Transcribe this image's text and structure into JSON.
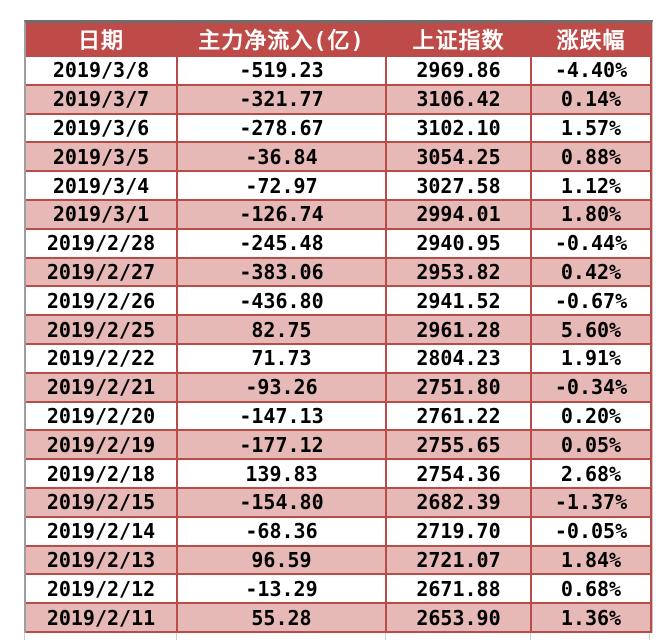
{
  "colors": {
    "header_bg": "#be4b48",
    "header_text": "#ffffff",
    "row_bg": "#ffffff",
    "row_alt_bg": "#e6b9b7",
    "grid_line": "#b94b48",
    "outer_border_top": "#6e6e6e",
    "outer_border_left": "#9e9e9e",
    "body_text": "#000000"
  },
  "chart_data": {
    "type": "table",
    "title": "",
    "columns": [
      "日期",
      "主力净流入(亿)",
      "上证指数",
      "涨跌幅"
    ],
    "rows": [
      [
        "2019/3/8",
        "-519.23",
        "2969.86",
        "-4.40%"
      ],
      [
        "2019/3/7",
        "-321.77",
        "3106.42",
        "0.14%"
      ],
      [
        "2019/3/6",
        "-278.67",
        "3102.10",
        "1.57%"
      ],
      [
        "2019/3/5",
        "-36.84",
        "3054.25",
        "0.88%"
      ],
      [
        "2019/3/4",
        "-72.97",
        "3027.58",
        "1.12%"
      ],
      [
        "2019/3/1",
        "-126.74",
        "2994.01",
        "1.80%"
      ],
      [
        "2019/2/28",
        "-245.48",
        "2940.95",
        "-0.44%"
      ],
      [
        "2019/2/27",
        "-383.06",
        "2953.82",
        "0.42%"
      ],
      [
        "2019/2/26",
        "-436.80",
        "2941.52",
        "-0.67%"
      ],
      [
        "2019/2/25",
        "82.75",
        "2961.28",
        "5.60%"
      ],
      [
        "2019/2/22",
        "71.73",
        "2804.23",
        "1.91%"
      ],
      [
        "2019/2/21",
        "-93.26",
        "2751.80",
        "-0.34%"
      ],
      [
        "2019/2/20",
        "-147.13",
        "2761.22",
        "0.20%"
      ],
      [
        "2019/2/19",
        "-177.12",
        "2755.65",
        "0.05%"
      ],
      [
        "2019/2/18",
        "139.83",
        "2754.36",
        "2.68%"
      ],
      [
        "2019/2/15",
        "-154.80",
        "2682.39",
        "-1.37%"
      ],
      [
        "2019/2/14",
        "-68.36",
        "2719.70",
        "-0.05%"
      ],
      [
        "2019/2/13",
        "96.59",
        "2721.07",
        "1.84%"
      ],
      [
        "2019/2/12",
        "-13.29",
        "2671.88",
        "0.68%"
      ],
      [
        "2019/2/11",
        "55.28",
        "2653.90",
        "1.36%"
      ]
    ],
    "categories": [
      "2019/3/8",
      "2019/3/7",
      "2019/3/6",
      "2019/3/5",
      "2019/3/4",
      "2019/3/1",
      "2019/2/28",
      "2019/2/27",
      "2019/2/26",
      "2019/2/25",
      "2019/2/22",
      "2019/2/21",
      "2019/2/20",
      "2019/2/19",
      "2019/2/18",
      "2019/2/15",
      "2019/2/14",
      "2019/2/13",
      "2019/2/12",
      "2019/2/11"
    ],
    "series": [
      {
        "name": "主力净流入(亿)",
        "values": [
          -519.23,
          -321.77,
          -278.67,
          -36.84,
          -72.97,
          -126.74,
          -245.48,
          -383.06,
          -436.8,
          82.75,
          71.73,
          -93.26,
          -147.13,
          -177.12,
          139.83,
          -154.8,
          -68.36,
          96.59,
          -13.29,
          55.28
        ]
      },
      {
        "name": "上证指数",
        "values": [
          2969.86,
          3106.42,
          3102.1,
          3054.25,
          3027.58,
          2994.01,
          2940.95,
          2953.82,
          2941.52,
          2961.28,
          2804.23,
          2751.8,
          2761.22,
          2755.65,
          2754.36,
          2682.39,
          2719.7,
          2721.07,
          2671.88,
          2653.9
        ]
      },
      {
        "name": "涨跌幅(%)",
        "values": [
          -4.4,
          0.14,
          1.57,
          0.88,
          1.12,
          1.8,
          -0.44,
          0.42,
          -0.67,
          5.6,
          1.91,
          -0.34,
          0.2,
          0.05,
          2.68,
          -1.37,
          -0.05,
          1.84,
          0.68,
          1.36
        ]
      }
    ]
  }
}
